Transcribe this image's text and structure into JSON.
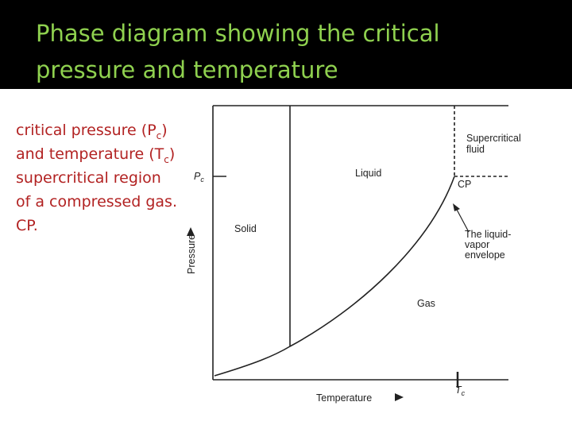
{
  "header": {
    "title_lines": [
      "Phase diagram showing the critical",
      "pressure and temperature"
    ]
  },
  "notes": [
    {
      "text": "critical pressure (P",
      "sub": "c",
      "tail": ")"
    },
    {
      "text": "and temperature (T",
      "sub": "c",
      "tail": ")"
    },
    {
      "text": "supercritical region"
    },
    {
      "text": "of a compressed gas."
    },
    {
      "text": "CP."
    }
  ],
  "diagram": {
    "pc_label": {
      "text": "P",
      "sub": "c"
    },
    "tc_label": {
      "text": "T",
      "sub": "c"
    },
    "liquid": "Liquid",
    "supercritical": [
      "Supercritical",
      "fluid"
    ],
    "cp": "CP",
    "solid": "Solid",
    "envelope": [
      "The liquid-",
      "vapor",
      "envelope"
    ],
    "gas": "Gas",
    "y_axis": "Pressure",
    "x_axis": "Temperature"
  }
}
